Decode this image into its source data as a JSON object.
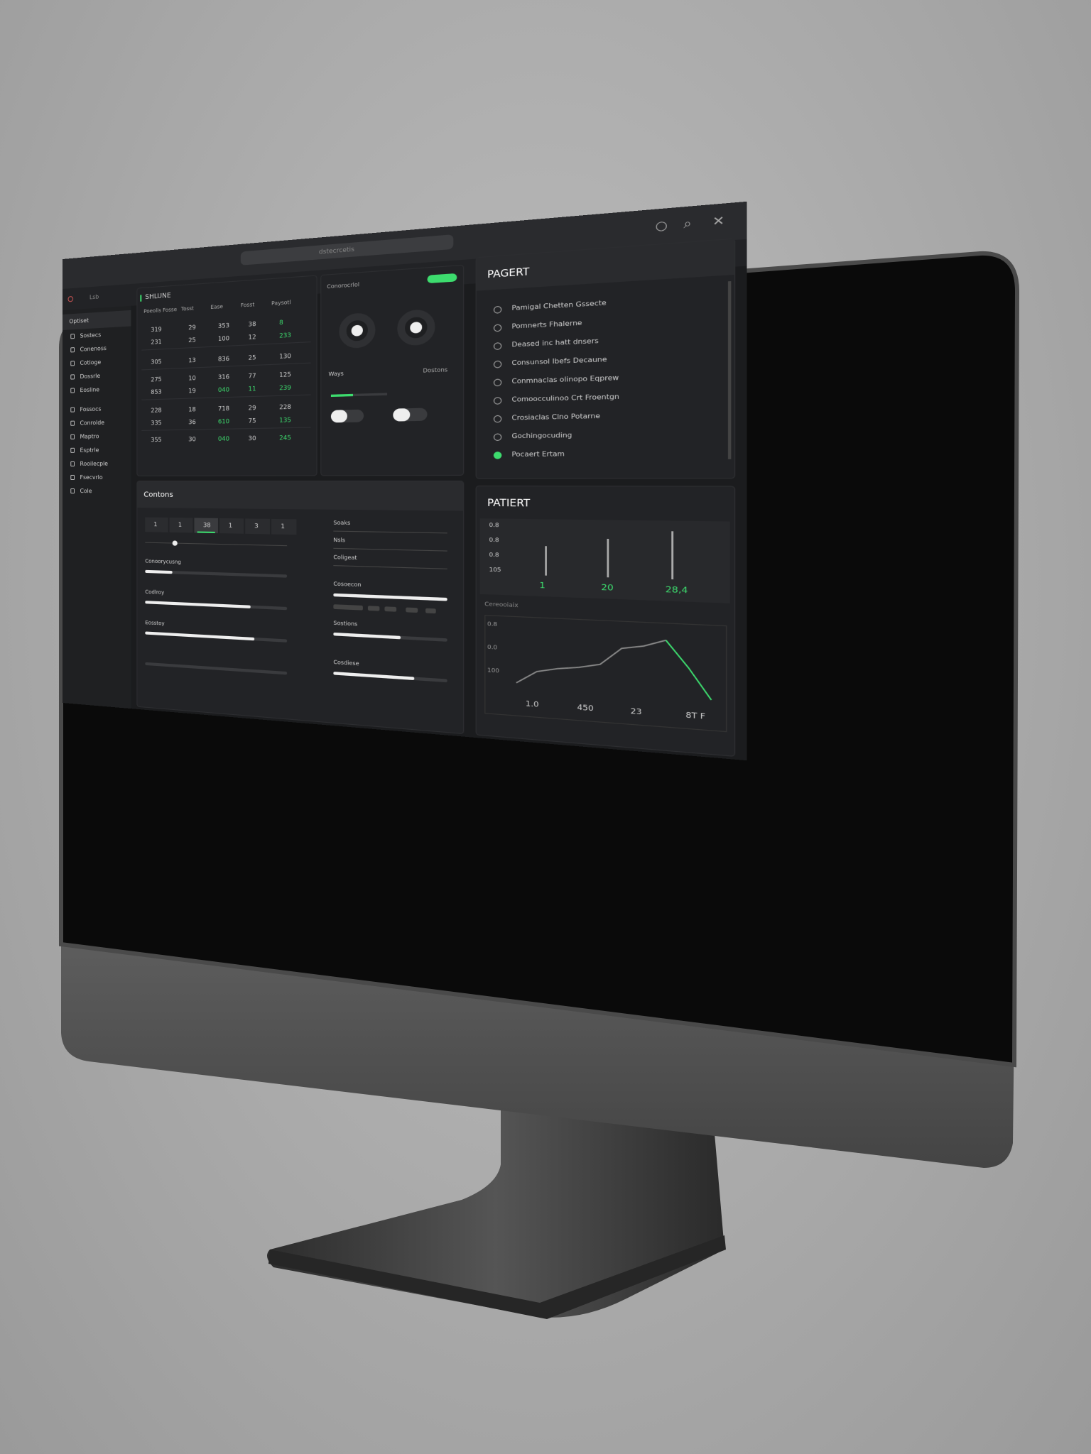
{
  "window": {
    "address": "dstecrcetis",
    "tab": "Lsb"
  },
  "sidebar": {
    "title": "Optiset",
    "items": [
      "Sostecs",
      "Conenoss",
      "Cotioge",
      "Dossrle",
      "Eosline",
      "Fossocs",
      "Conrolde",
      "Maptro",
      "Esptrle",
      "Rooilecple",
      "Fsecvrlo",
      "Cole"
    ]
  },
  "table": {
    "title": "SHLUNE",
    "headers": [
      "Poeolis Fosse",
      "Tosst",
      "Ease",
      "Fosst",
      "Paysotl"
    ],
    "rows": [
      [
        "319",
        "29",
        "353",
        "38",
        "8"
      ],
      [
        "231",
        "25",
        "100",
        "12",
        "233"
      ],
      [
        "305",
        "13",
        "836",
        "25",
        "130"
      ],
      [
        "275",
        "10",
        "316",
        "77",
        "125"
      ],
      [
        "853",
        "19",
        "040",
        "11",
        "239"
      ],
      [
        "228",
        "18",
        "718",
        "29",
        "228"
      ],
      [
        "335",
        "36",
        "610",
        "75",
        "135"
      ],
      [
        "355",
        "30",
        "040",
        "30",
        "245"
      ]
    ],
    "accent_color": "#3ddc6e",
    "accent_cells": [
      [
        0,
        4
      ],
      [
        1,
        4
      ],
      [
        4,
        2
      ],
      [
        4,
        3
      ],
      [
        4,
        4
      ],
      [
        6,
        2
      ],
      [
        6,
        4
      ],
      [
        7,
        2
      ],
      [
        7,
        4
      ]
    ]
  },
  "controls": {
    "title": "Conorocrlol",
    "left_label": "Ways",
    "right_label": "Dostons",
    "progress": 0.4
  },
  "pagert": {
    "title": "PAGERT",
    "items": [
      "Pamigal Chetten Gssecte",
      "Pomnerts Fhalerne",
      "Deased inc hatt dnsers",
      "Consunsol Ibefs Decaune",
      "Conmnaclas olinopo Eqprew",
      "Comoocculinoo Crt Froentgn",
      "Crosiaclas Clno Potarne",
      "Gochingocuding",
      "Pocaert Ertam"
    ]
  },
  "contons": {
    "title": "Contons",
    "tabs": [
      "1",
      "1",
      "38",
      "1",
      "3",
      "1"
    ],
    "slider": 0.2,
    "left": [
      {
        "label": "Conoorycusng",
        "value": 0.2
      },
      {
        "label": "Codlroy",
        "value": 0.75
      },
      {
        "label": "Eosstoy",
        "value": 0.78
      }
    ],
    "right_fields": [
      "Soaks",
      "Nsls",
      "Coligeat"
    ],
    "right": [
      {
        "label": "Cosoecon",
        "value": 1.0
      },
      {
        "label": "Sostions",
        "value": 0.6
      },
      {
        "label": "Cosdiese",
        "value": 0.72
      }
    ]
  },
  "patient": {
    "title": "PATIERT",
    "scale": [
      "0.8",
      "0.8",
      "0.8",
      "105"
    ],
    "gauges": [
      "1",
      "20",
      "28,4"
    ],
    "chart_title": "Cereooiaix",
    "chart_yticks": [
      "0.8",
      "0.0",
      "100"
    ],
    "chart_xticks": [
      "1.0",
      "450",
      "23",
      "8T F"
    ],
    "trend": [
      0.1,
      0.25,
      0.3,
      0.33,
      0.38,
      0.58,
      0.62,
      0.7,
      0.4,
      0.05
    ],
    "trend_accent_from": 7
  }
}
